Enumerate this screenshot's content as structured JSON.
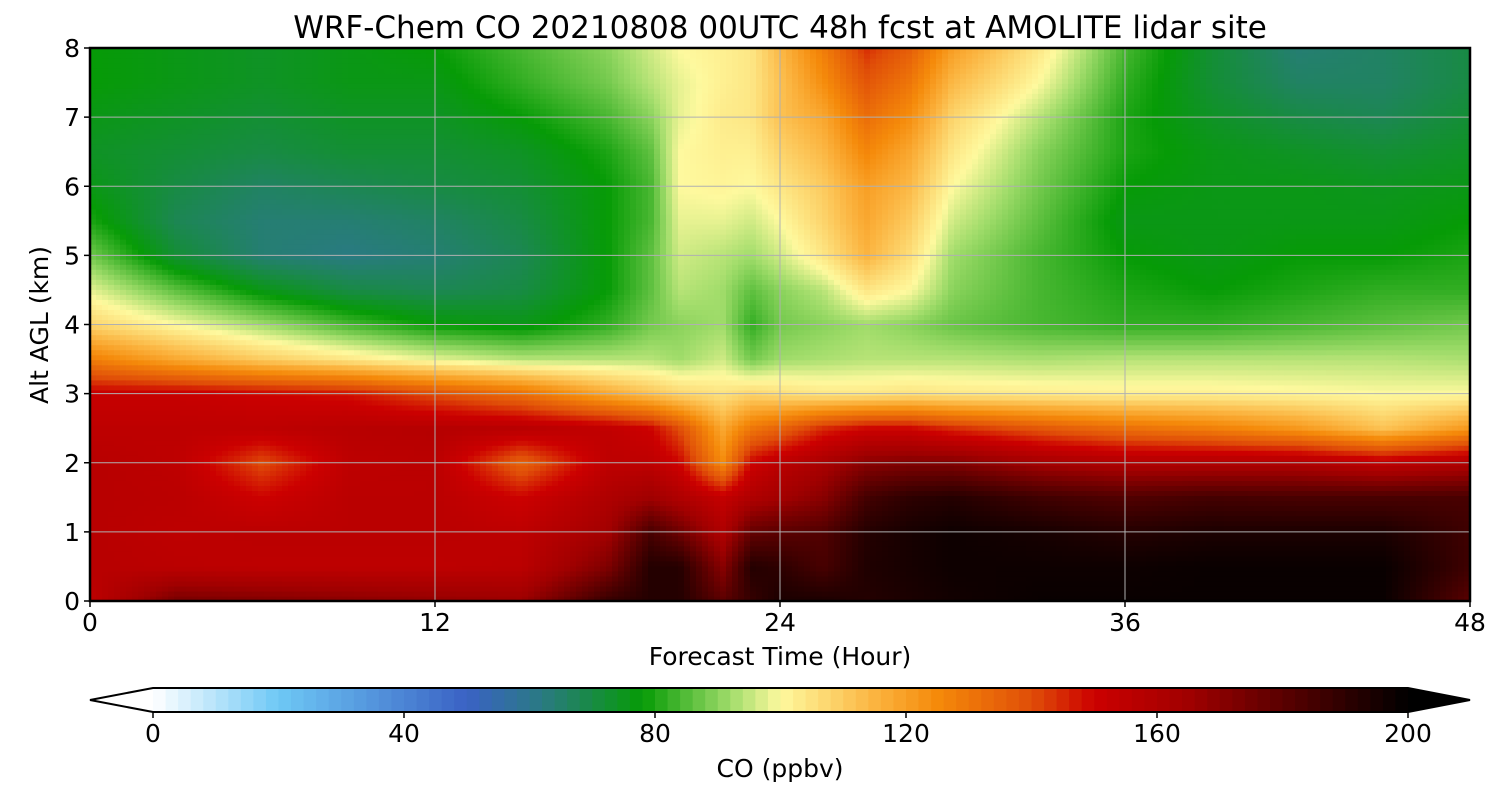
{
  "chart_data": {
    "type": "heatmap",
    "title": "WRF-Chem CO  20210808 00UTC 48h fcst at AMOLITE lidar site",
    "xlabel": "Forecast Time (Hour)",
    "ylabel": "Alt AGL (km)",
    "xlim": [
      0,
      48
    ],
    "ylim": [
      0,
      8
    ],
    "xticks": [
      0,
      12,
      24,
      36,
      48
    ],
    "yticks": [
      0,
      1,
      2,
      3,
      4,
      5,
      6,
      7,
      8
    ],
    "grid": true,
    "colorbar": {
      "label": "CO  (ppbv)",
      "range": [
        0,
        200
      ],
      "ticks": [
        0,
        40,
        80,
        120,
        160,
        200
      ],
      "extend": "both",
      "orientation": "horizontal",
      "stops": [
        {
          "v": 0,
          "c": "#ffffff"
        },
        {
          "v": 20,
          "c": "#6ec8f5"
        },
        {
          "v": 50,
          "c": "#3a62c4"
        },
        {
          "v": 62,
          "c": "#2a7a82"
        },
        {
          "v": 78,
          "c": "#069b06"
        },
        {
          "v": 92,
          "c": "#a0dc6a"
        },
        {
          "v": 100,
          "c": "#fef99e"
        },
        {
          "v": 115,
          "c": "#fbb440"
        },
        {
          "v": 125,
          "c": "#f58a0a"
        },
        {
          "v": 140,
          "c": "#e04e08"
        },
        {
          "v": 150,
          "c": "#cc0000"
        },
        {
          "v": 165,
          "c": "#a00000"
        },
        {
          "v": 180,
          "c": "#5a0000"
        },
        {
          "v": 200,
          "c": "#000000"
        }
      ]
    },
    "x": [
      0,
      3,
      6,
      9,
      12,
      15,
      18,
      19.5,
      20.5,
      22,
      23,
      24,
      25.5,
      27,
      28.5,
      30,
      33,
      36,
      39,
      42,
      45,
      48
    ],
    "y": [
      0,
      0.5,
      1,
      1.5,
      2,
      2.5,
      3,
      3.5,
      4,
      4.5,
      5,
      5.5,
      6,
      6.5,
      7,
      7.5,
      8
    ],
    "z": [
      [
        155,
        174,
        172,
        170,
        168,
        166,
        188,
        192,
        192,
        180,
        188,
        194,
        194,
        192,
        194,
        196,
        198,
        198,
        198,
        198,
        198,
        180
      ],
      [
        157,
        156,
        155,
        155,
        155,
        156,
        172,
        192,
        192,
        170,
        192,
        190,
        184,
        193,
        195,
        197,
        197,
        197,
        198,
        198,
        198,
        186
      ],
      [
        157,
        155,
        156,
        156,
        156,
        155,
        164,
        184,
        176,
        160,
        178,
        180,
        182,
        192,
        195,
        197,
        195,
        192,
        194,
        194,
        194,
        186
      ],
      [
        157,
        156,
        150,
        156,
        156,
        150,
        160,
        165,
        160,
        153,
        160,
        164,
        170,
        185,
        190,
        192,
        186,
        182,
        185,
        184,
        184,
        184
      ],
      [
        157,
        155,
        140,
        155,
        156,
        135,
        155,
        155,
        150,
        125,
        150,
        156,
        162,
        170,
        172,
        172,
        164,
        160,
        160,
        160,
        155,
        160
      ],
      [
        155,
        155,
        155,
        157,
        158,
        157,
        154,
        150,
        140,
        118,
        130,
        135,
        145,
        150,
        150,
        145,
        138,
        132,
        128,
        122,
        112,
        122
      ],
      [
        152,
        152,
        150,
        148,
        140,
        132,
        118,
        112,
        108,
        105,
        108,
        106,
        104,
        104,
        105,
        104,
        103,
        102,
        102,
        101,
        100,
        100
      ],
      [
        128,
        118,
        110,
        104,
        98,
        94,
        94,
        94,
        92,
        96,
        88,
        92,
        93,
        94,
        94,
        94,
        93,
        94,
        94,
        94,
        94,
        93
      ],
      [
        108,
        100,
        92,
        84,
        78,
        76,
        82,
        88,
        90,
        92,
        82,
        88,
        90,
        92,
        90,
        87,
        84,
        82,
        82,
        84,
        86,
        88
      ],
      [
        98,
        86,
        76,
        70,
        68,
        70,
        78,
        86,
        94,
        92,
        86,
        90,
        94,
        104,
        100,
        90,
        84,
        80,
        78,
        80,
        82,
        82
      ],
      [
        88,
        72,
        64,
        62,
        64,
        68,
        78,
        86,
        96,
        94,
        92,
        96,
        104,
        115,
        106,
        92,
        84,
        78,
        76,
        78,
        78,
        80
      ],
      [
        80,
        68,
        64,
        64,
        66,
        70,
        78,
        84,
        98,
        98,
        96,
        100,
        108,
        118,
        110,
        96,
        86,
        76,
        76,
        76,
        76,
        78
      ],
      [
        76,
        70,
        66,
        68,
        70,
        72,
        78,
        84,
        100,
        101,
        100,
        104,
        110,
        120,
        114,
        100,
        88,
        78,
        76,
        76,
        75,
        76
      ],
      [
        74,
        72,
        70,
        72,
        72,
        74,
        80,
        86,
        100,
        102,
        102,
        108,
        114,
        126,
        118,
        104,
        90,
        80,
        76,
        74,
        72,
        74
      ],
      [
        76,
        74,
        72,
        74,
        74,
        78,
        84,
        90,
        98,
        103,
        104,
        112,
        118,
        132,
        124,
        108,
        94,
        80,
        74,
        70,
        68,
        72
      ],
      [
        78,
        76,
        74,
        76,
        76,
        82,
        88,
        94,
        98,
        102,
        104,
        112,
        124,
        138,
        130,
        114,
        100,
        82,
        72,
        66,
        66,
        70
      ],
      [
        78,
        76,
        74,
        76,
        78,
        84,
        90,
        96,
        100,
        102,
        104,
        114,
        128,
        144,
        136,
        120,
        104,
        84,
        72,
        64,
        66,
        70
      ]
    ]
  }
}
